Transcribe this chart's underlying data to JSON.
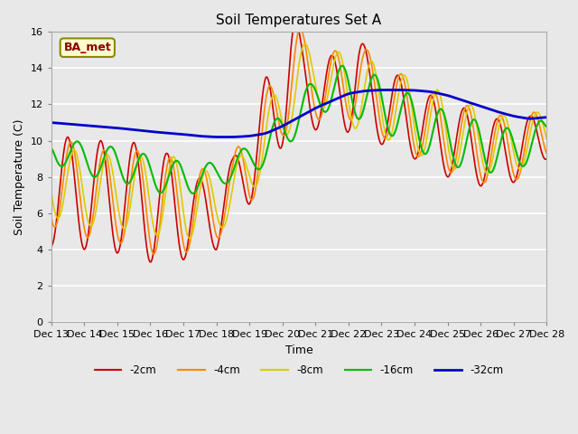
{
  "title": "Soil Temperatures Set A",
  "xlabel": "Time",
  "ylabel": "Soil Temperature (C)",
  "ylim": [
    0,
    16
  ],
  "yticks": [
    0,
    2,
    4,
    6,
    8,
    10,
    12,
    14,
    16
  ],
  "annotation": "BA_met",
  "background_color": "#e8e8e8",
  "series_colors": {
    "-2cm": "#cc0000",
    "-4cm": "#ff8800",
    "-8cm": "#ddcc00",
    "-16cm": "#00bb00",
    "-32cm": "#0000cc"
  },
  "x_labels": [
    "Dec 13",
    "Dec 14",
    "Dec 15",
    "Dec 16",
    "Dec 17",
    "Dec 18",
    "Dec 19",
    "Dec 20",
    "Dec 21",
    "Dec 22",
    "Dec 23",
    "Dec 24",
    "Dec 25",
    "Dec 26",
    "Dec 27",
    "Dec 28"
  ]
}
